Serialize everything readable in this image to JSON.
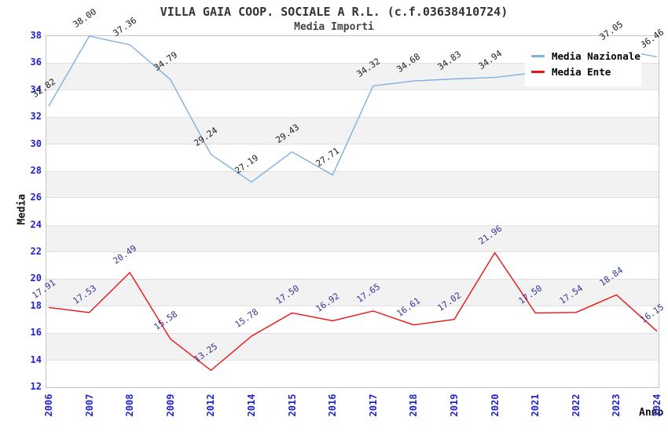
{
  "header": {
    "title": "VILLA GAIA COOP. SOCIALE A R.L. (c.f.03638410724)",
    "subtitle": "Media Importi"
  },
  "chart_data": {
    "type": "line",
    "title": "VILLA GAIA COOP. SOCIALE A R.L. (c.f.03638410724)",
    "subtitle": "Media Importi",
    "xlabel": "Anno",
    "ylabel": "Media",
    "ylim": [
      12,
      38
    ],
    "ytick_step": 2,
    "grid": "alternating-horizontal-bands",
    "band_fill": "#f2f2f2",
    "tick_color": "#2323cf",
    "categories": [
      "2006",
      "2007",
      "2008",
      "2009",
      "2012",
      "2014",
      "2015",
      "2016",
      "2017",
      "2018",
      "2019",
      "2020",
      "2021",
      "2022",
      "2023",
      "2024"
    ],
    "series": [
      {
        "name": "Media Nazionale",
        "color": "#7fb0e3",
        "label_color": "#1a1a1a",
        "values": [
          32.82,
          38.0,
          37.36,
          34.79,
          29.24,
          27.19,
          29.43,
          27.71,
          34.32,
          34.68,
          34.83,
          34.94,
          35.3,
          35.9,
          37.05,
          36.46
        ],
        "labels": [
          "32.82",
          "38.00",
          "37.36",
          "34.79",
          "29.24",
          "27.19",
          "29.43",
          "27.71",
          "34.32",
          "34.68",
          "34.83",
          "34.94",
          null,
          null,
          "37.05",
          "36.46"
        ]
      },
      {
        "name": "Media Ente",
        "color": "#ee1111",
        "label_color": "#333399",
        "values": [
          17.91,
          17.53,
          20.49,
          15.58,
          13.25,
          15.78,
          17.5,
          16.92,
          17.65,
          16.61,
          17.02,
          21.96,
          17.5,
          17.54,
          18.84,
          16.15
        ],
        "labels": [
          "17.91",
          "17.53",
          "20.49",
          "15.58",
          "13.25",
          "15.78",
          "17.50",
          "16.92",
          "17.65",
          "16.61",
          "17.02",
          "21.96",
          "17.50",
          "17.54",
          "18.84",
          "16.15"
        ]
      }
    ],
    "legend": {
      "position": "top-right",
      "entries": [
        "Media Nazionale",
        "Media Ente"
      ]
    },
    "notes": "Labels of Media Nazionale for 2021 and 2022 are covered by the legend box; their values are estimated from the line path. Labels 36.46 and 16.15 are clipped at the right edge."
  }
}
